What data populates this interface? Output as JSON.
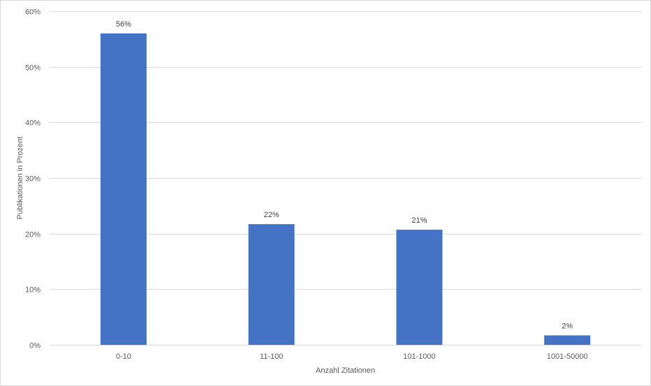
{
  "chart_data": {
    "type": "bar",
    "categories": [
      "0-10",
      "11-100",
      "101-1000",
      "1001-50000"
    ],
    "values": [
      56,
      21.7,
      20.7,
      1.7
    ],
    "data_labels": [
      "56%",
      "22%",
      "21%",
      "2%"
    ],
    "title": "",
    "xlabel": "Anzahl Zitationen",
    "ylabel": "Publikationen in Prozent",
    "ylim": [
      0,
      60
    ],
    "y_ticks": [
      0,
      10,
      20,
      30,
      40,
      50,
      60
    ],
    "y_tick_labels": [
      "0%",
      "10%",
      "20%",
      "30%",
      "40%",
      "50%",
      "60%"
    ],
    "grid": true,
    "legend": "none",
    "bar_color": "#4472C4"
  }
}
